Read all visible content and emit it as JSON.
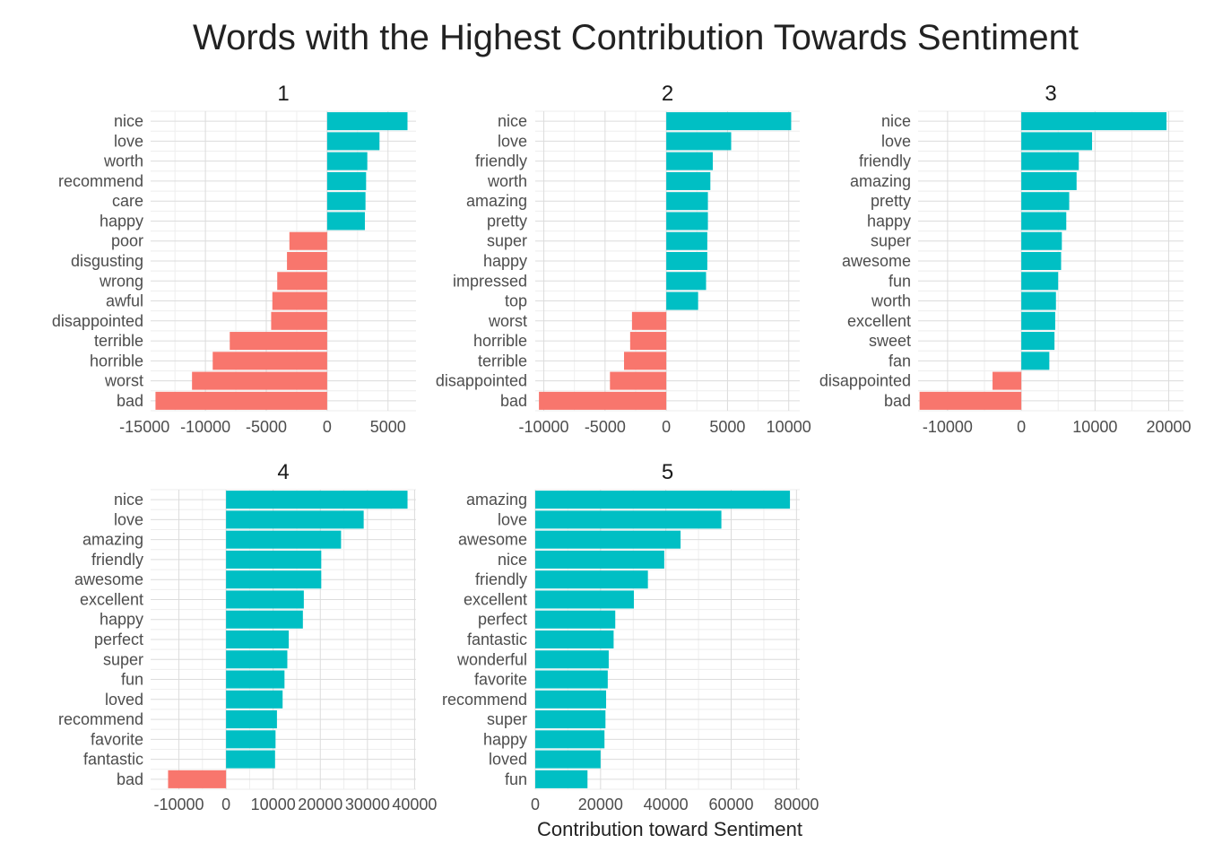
{
  "colors": {
    "positive": "#00BFC4",
    "negative": "#F8766D"
  },
  "chart_data": {
    "type": "bar",
    "orientation": "horizontal",
    "title": "Words with the Highest Contribution Towards Sentiment",
    "xlabel": "Contribution toward Sentiment",
    "panels": [
      {
        "title": "1",
        "xlim": [
          -14500,
          7300
        ],
        "xticks": [
          -15000,
          -10000,
          -5000,
          0,
          5000
        ],
        "xtick_labels": [
          "-15000",
          "-10000",
          "-5000",
          "0",
          "5000"
        ],
        "words": [
          "nice",
          "love",
          "worth",
          "recommend",
          "care",
          "happy",
          "poor",
          "disgusting",
          "wrong",
          "awful",
          "disappointed",
          "terrible",
          "horrible",
          "worst",
          "bad"
        ],
        "values": [
          6600,
          4300,
          3300,
          3200,
          3150,
          3100,
          -3100,
          -3300,
          -4100,
          -4500,
          -4600,
          -8000,
          -9400,
          -11100,
          -14100
        ]
      },
      {
        "title": "2",
        "xlim": [
          -10700,
          10900
        ],
        "xticks": [
          -10000,
          -5000,
          0,
          5000,
          10000
        ],
        "xtick_labels": [
          "-10000",
          "-5000",
          "0",
          "5000",
          "10000"
        ],
        "words": [
          "nice",
          "love",
          "friendly",
          "worth",
          "amazing",
          "pretty",
          "super",
          "happy",
          "impressed",
          "top",
          "worst",
          "horrible",
          "terrible",
          "disappointed",
          "bad"
        ],
        "values": [
          10200,
          5300,
          3800,
          3600,
          3400,
          3400,
          3350,
          3350,
          3250,
          2600,
          -2800,
          -2950,
          -3450,
          -4600,
          -10400
        ]
      },
      {
        "title": "3",
        "xlim": [
          -14000,
          22000
        ],
        "xticks": [
          -10000,
          0,
          10000,
          20000
        ],
        "xtick_labels": [
          "-10000",
          "0",
          "10000",
          "20000"
        ],
        "words": [
          "nice",
          "love",
          "friendly",
          "amazing",
          "pretty",
          "happy",
          "super",
          "awesome",
          "fun",
          "worth",
          "excellent",
          "sweet",
          "fan",
          "disappointed",
          "bad"
        ],
        "values": [
          19700,
          9600,
          7800,
          7500,
          6500,
          6100,
          5500,
          5400,
          5000,
          4700,
          4600,
          4500,
          3800,
          -3900,
          -13800
        ]
      },
      {
        "title": "4",
        "xlim": [
          -16000,
          40300
        ],
        "xticks": [
          -10000,
          0,
          10000,
          20000,
          30000,
          40000
        ],
        "xtick_labels": [
          "-10000",
          "0",
          "10000",
          "20000",
          "30000",
          "40000"
        ],
        "words": [
          "nice",
          "love",
          "amazing",
          "friendly",
          "awesome",
          "excellent",
          "happy",
          "perfect",
          "super",
          "fun",
          "loved",
          "recommend",
          "favorite",
          "fantastic",
          "bad"
        ],
        "values": [
          38500,
          29200,
          24400,
          20200,
          20200,
          16500,
          16300,
          13300,
          13000,
          12400,
          12000,
          10800,
          10500,
          10400,
          -12300
        ]
      },
      {
        "title": "5",
        "xlim": [
          0,
          81000
        ],
        "xticks": [
          0,
          20000,
          40000,
          60000,
          80000
        ],
        "xtick_labels": [
          "0",
          "20000",
          "40000",
          "60000",
          "80000"
        ],
        "words": [
          "amazing",
          "love",
          "awesome",
          "nice",
          "friendly",
          "excellent",
          "perfect",
          "fantastic",
          "wonderful",
          "favorite",
          "recommend",
          "super",
          "happy",
          "loved",
          "fun"
        ],
        "values": [
          78000,
          57000,
          44500,
          39500,
          34500,
          30200,
          24500,
          24000,
          22500,
          22200,
          21700,
          21500,
          21200,
          20000,
          16000
        ]
      }
    ]
  }
}
